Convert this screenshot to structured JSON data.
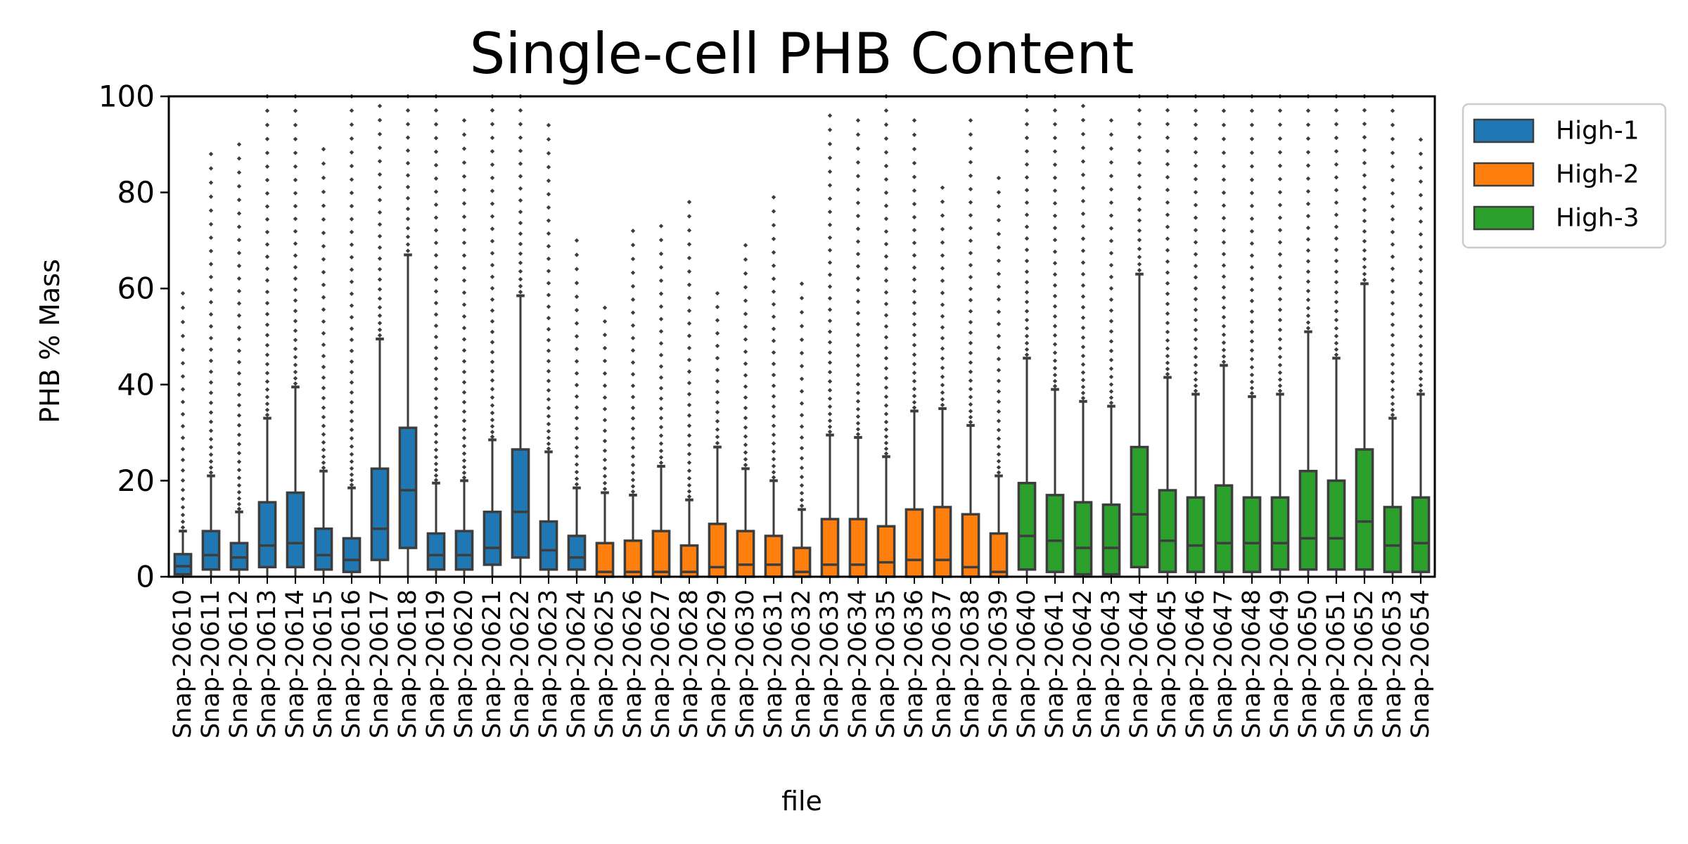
{
  "chart_data": {
    "type": "box",
    "title": "Single-cell PHB Content",
    "xlabel": "file",
    "ylabel": "PHB % Mass",
    "ylim": [
      0,
      100
    ],
    "yticks": [
      0,
      20,
      40,
      60,
      80,
      100
    ],
    "grid": false,
    "legend_position": "outside-top-right",
    "legend": [
      {
        "name": "High-1",
        "color": "#1f77b4"
      },
      {
        "name": "High-2",
        "color": "#ff7f0e"
      },
      {
        "name": "High-3",
        "color": "#2ca02c"
      }
    ],
    "boxes": [
      {
        "file": "Snap-20610",
        "group": "High-1",
        "q1": 0.5,
        "median": 2.2,
        "q3": 4.7,
        "whisker_low": 0,
        "whisker_high": 9.5,
        "outliers_up_to": 59
      },
      {
        "file": "Snap-20611",
        "group": "High-1",
        "q1": 1.5,
        "median": 4.5,
        "q3": 9.5,
        "whisker_low": 0,
        "whisker_high": 21,
        "outliers_up_to": 88
      },
      {
        "file": "Snap-20612",
        "group": "High-1",
        "q1": 1.5,
        "median": 4.0,
        "q3": 7.0,
        "whisker_low": 0,
        "whisker_high": 13.5,
        "outliers_up_to": 90
      },
      {
        "file": "Snap-20613",
        "group": "High-1",
        "q1": 2.0,
        "median": 6.5,
        "q3": 15.5,
        "whisker_low": 0,
        "whisker_high": 33,
        "outliers_up_to": 100
      },
      {
        "file": "Snap-20614",
        "group": "High-1",
        "q1": 2.0,
        "median": 7.0,
        "q3": 17.5,
        "whisker_low": 0,
        "whisker_high": 39.5,
        "outliers_up_to": 100
      },
      {
        "file": "Snap-20615",
        "group": "High-1",
        "q1": 1.5,
        "median": 4.5,
        "q3": 10.0,
        "whisker_low": 0,
        "whisker_high": 22,
        "outliers_up_to": 89
      },
      {
        "file": "Snap-20616",
        "group": "High-1",
        "q1": 1.0,
        "median": 3.5,
        "q3": 8.0,
        "whisker_low": 0,
        "whisker_high": 18.5,
        "outliers_up_to": 100
      },
      {
        "file": "Snap-20617",
        "group": "High-1",
        "q1": 3.5,
        "median": 10.0,
        "q3": 22.5,
        "whisker_low": 0,
        "whisker_high": 49.5,
        "outliers_up_to": 98
      },
      {
        "file": "Snap-20618",
        "group": "High-1",
        "q1": 6.0,
        "median": 18.0,
        "q3": 31.0,
        "whisker_low": 0,
        "whisker_high": 67,
        "outliers_up_to": 100
      },
      {
        "file": "Snap-20619",
        "group": "High-1",
        "q1": 1.5,
        "median": 4.5,
        "q3": 9.0,
        "whisker_low": 0,
        "whisker_high": 19.5,
        "outliers_up_to": 100
      },
      {
        "file": "Snap-20620",
        "group": "High-1",
        "q1": 1.5,
        "median": 4.5,
        "q3": 9.5,
        "whisker_low": 0,
        "whisker_high": 20,
        "outliers_up_to": 95
      },
      {
        "file": "Snap-20621",
        "group": "High-1",
        "q1": 2.5,
        "median": 6.0,
        "q3": 13.5,
        "whisker_low": 0,
        "whisker_high": 28.5,
        "outliers_up_to": 100
      },
      {
        "file": "Snap-20622",
        "group": "High-1",
        "q1": 4.0,
        "median": 13.5,
        "q3": 26.5,
        "whisker_low": 0,
        "whisker_high": 58.5,
        "outliers_up_to": 100
      },
      {
        "file": "Snap-20623",
        "group": "High-1",
        "q1": 1.5,
        "median": 5.5,
        "q3": 11.5,
        "whisker_low": 0,
        "whisker_high": 26,
        "outliers_up_to": 94
      },
      {
        "file": "Snap-20624",
        "group": "High-1",
        "q1": 1.5,
        "median": 4.0,
        "q3": 8.5,
        "whisker_low": 0,
        "whisker_high": 18.5,
        "outliers_up_to": 70
      },
      {
        "file": "Snap-20625",
        "group": "High-2",
        "q1": 0,
        "median": 1.0,
        "q3": 7.0,
        "whisker_low": 0,
        "whisker_high": 17.5,
        "outliers_up_to": 56
      },
      {
        "file": "Snap-20626",
        "group": "High-2",
        "q1": 0,
        "median": 1.0,
        "q3": 7.5,
        "whisker_low": 0,
        "whisker_high": 17,
        "outliers_up_to": 72
      },
      {
        "file": "Snap-20627",
        "group": "High-2",
        "q1": 0,
        "median": 1.0,
        "q3": 9.5,
        "whisker_low": 0,
        "whisker_high": 23,
        "outliers_up_to": 73
      },
      {
        "file": "Snap-20628",
        "group": "High-2",
        "q1": 0,
        "median": 1.0,
        "q3": 6.5,
        "whisker_low": 0,
        "whisker_high": 16,
        "outliers_up_to": 78
      },
      {
        "file": "Snap-20629",
        "group": "High-2",
        "q1": 0,
        "median": 2.0,
        "q3": 11.0,
        "whisker_low": 0,
        "whisker_high": 27,
        "outliers_up_to": 59
      },
      {
        "file": "Snap-20630",
        "group": "High-2",
        "q1": 0,
        "median": 2.5,
        "q3": 9.5,
        "whisker_low": 0,
        "whisker_high": 22.5,
        "outliers_up_to": 69
      },
      {
        "file": "Snap-20631",
        "group": "High-2",
        "q1": 0,
        "median": 2.5,
        "q3": 8.5,
        "whisker_low": 0,
        "whisker_high": 20,
        "outliers_up_to": 79
      },
      {
        "file": "Snap-20632",
        "group": "High-2",
        "q1": 0,
        "median": 1.0,
        "q3": 6.0,
        "whisker_low": 0,
        "whisker_high": 14,
        "outliers_up_to": 61
      },
      {
        "file": "Snap-20633",
        "group": "High-2",
        "q1": 0,
        "median": 2.5,
        "q3": 12.0,
        "whisker_low": 0,
        "whisker_high": 29.5,
        "outliers_up_to": 96
      },
      {
        "file": "Snap-20634",
        "group": "High-2",
        "q1": 0,
        "median": 2.5,
        "q3": 12.0,
        "whisker_low": 0,
        "whisker_high": 29,
        "outliers_up_to": 95
      },
      {
        "file": "Snap-20635",
        "group": "High-2",
        "q1": 0,
        "median": 3.0,
        "q3": 10.5,
        "whisker_low": 0,
        "whisker_high": 25,
        "outliers_up_to": 100
      },
      {
        "file": "Snap-20636",
        "group": "High-2",
        "q1": 0,
        "median": 3.5,
        "q3": 14.0,
        "whisker_low": 0,
        "whisker_high": 34.5,
        "outliers_up_to": 95
      },
      {
        "file": "Snap-20637",
        "group": "High-2",
        "q1": 0,
        "median": 3.5,
        "q3": 14.5,
        "whisker_low": 0,
        "whisker_high": 35,
        "outliers_up_to": 81
      },
      {
        "file": "Snap-20638",
        "group": "High-2",
        "q1": 0,
        "median": 2.0,
        "q3": 13.0,
        "whisker_low": 0,
        "whisker_high": 31.5,
        "outliers_up_to": 95
      },
      {
        "file": "Snap-20639",
        "group": "High-2",
        "q1": 0,
        "median": 1.0,
        "q3": 9.0,
        "whisker_low": 0,
        "whisker_high": 21,
        "outliers_up_to": 83
      },
      {
        "file": "Snap-20640",
        "group": "High-3",
        "q1": 1.5,
        "median": 8.5,
        "q3": 19.5,
        "whisker_low": 0,
        "whisker_high": 45.5,
        "outliers_up_to": 100
      },
      {
        "file": "Snap-20641",
        "group": "High-3",
        "q1": 1.0,
        "median": 7.5,
        "q3": 17.0,
        "whisker_low": 0,
        "whisker_high": 39,
        "outliers_up_to": 100
      },
      {
        "file": "Snap-20642",
        "group": "High-3",
        "q1": 0.5,
        "median": 6.0,
        "q3": 15.5,
        "whisker_low": 0,
        "whisker_high": 36.5,
        "outliers_up_to": 98
      },
      {
        "file": "Snap-20643",
        "group": "High-3",
        "q1": 0.5,
        "median": 6.0,
        "q3": 15.0,
        "whisker_low": 0,
        "whisker_high": 35.5,
        "outliers_up_to": 95
      },
      {
        "file": "Snap-20644",
        "group": "High-3",
        "q1": 2.0,
        "median": 13.0,
        "q3": 27.0,
        "whisker_low": 0,
        "whisker_high": 63,
        "outliers_up_to": 100
      },
      {
        "file": "Snap-20645",
        "group": "High-3",
        "q1": 1.0,
        "median": 7.5,
        "q3": 18.0,
        "whisker_low": 0,
        "whisker_high": 41.5,
        "outliers_up_to": 100
      },
      {
        "file": "Snap-20646",
        "group": "High-3",
        "q1": 1.0,
        "median": 6.5,
        "q3": 16.5,
        "whisker_low": 0,
        "whisker_high": 38,
        "outliers_up_to": 100
      },
      {
        "file": "Snap-20647",
        "group": "High-3",
        "q1": 1.0,
        "median": 7.0,
        "q3": 19.0,
        "whisker_low": 0,
        "whisker_high": 44,
        "outliers_up_to": 100
      },
      {
        "file": "Snap-20648",
        "group": "High-3",
        "q1": 1.0,
        "median": 7.0,
        "q3": 16.5,
        "whisker_low": 0,
        "whisker_high": 37.5,
        "outliers_up_to": 100
      },
      {
        "file": "Snap-20649",
        "group": "High-3",
        "q1": 1.5,
        "median": 7.0,
        "q3": 16.5,
        "whisker_low": 0,
        "whisker_high": 38,
        "outliers_up_to": 100
      },
      {
        "file": "Snap-20650",
        "group": "High-3",
        "q1": 1.5,
        "median": 8.0,
        "q3": 22.0,
        "whisker_low": 0,
        "whisker_high": 51,
        "outliers_up_to": 100
      },
      {
        "file": "Snap-20651",
        "group": "High-3",
        "q1": 1.5,
        "median": 8.0,
        "q3": 20.0,
        "whisker_low": 0,
        "whisker_high": 45.5,
        "outliers_up_to": 100
      },
      {
        "file": "Snap-20652",
        "group": "High-3",
        "q1": 1.5,
        "median": 11.5,
        "q3": 26.5,
        "whisker_low": 0,
        "whisker_high": 61,
        "outliers_up_to": 100
      },
      {
        "file": "Snap-20653",
        "group": "High-3",
        "q1": 1.0,
        "median": 6.5,
        "q3": 14.5,
        "whisker_low": 0,
        "whisker_high": 33,
        "outliers_up_to": 100
      },
      {
        "file": "Snap-20654",
        "group": "High-3",
        "q1": 1.0,
        "median": 7.0,
        "q3": 16.5,
        "whisker_low": 0,
        "whisker_high": 38,
        "outliers_up_to": 91
      }
    ]
  }
}
